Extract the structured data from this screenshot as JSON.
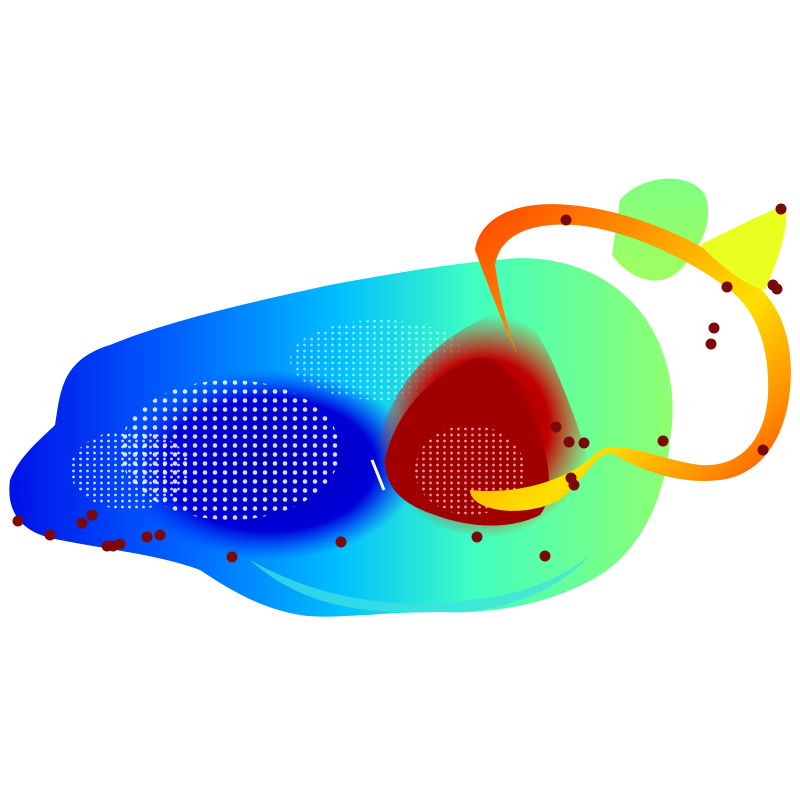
{
  "figure": {
    "description_type": "point-cloud-surface",
    "colormap": "jet",
    "background": "#ffffff",
    "marker_color": "#7a0a0a",
    "colormap_stops": [
      "#00008f",
      "#0000ff",
      "#007fff",
      "#00ffff",
      "#7fff7f",
      "#ffff00",
      "#ff7f00",
      "#ff0000",
      "#7f0000"
    ]
  }
}
